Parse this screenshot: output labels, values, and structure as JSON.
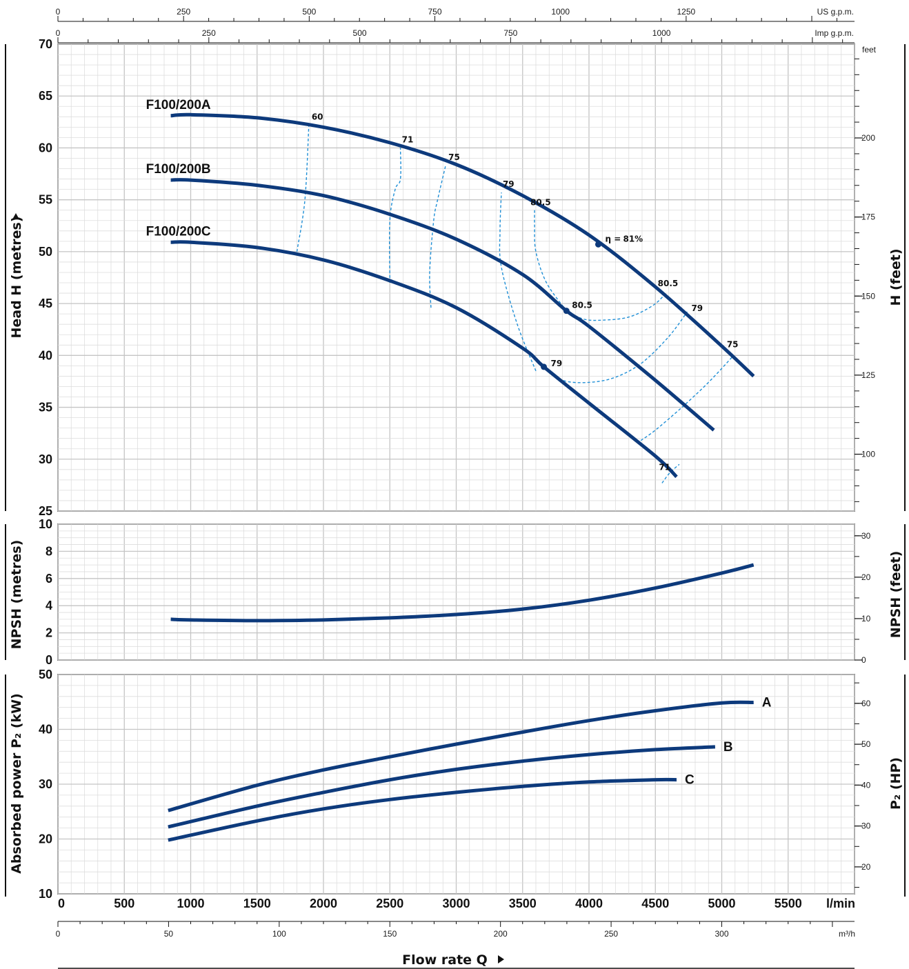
{
  "chart_data": [
    {
      "type": "line",
      "panel": "head",
      "ylabel": "Head H  (metres)",
      "ylabel_right": "H (feet)",
      "ylim": [
        25,
        70
      ],
      "yticks": [
        "25",
        "30",
        "35",
        "40",
        "45",
        "50",
        "55",
        "60",
        "65",
        "70"
      ],
      "y2unit": "feet",
      "y2ticks": [
        "100",
        "125",
        "150",
        "175",
        "200"
      ],
      "top_scales": [
        {
          "unit": "US g.p.m.",
          "ticks": [
            "0",
            "250",
            "500",
            "750",
            "1000",
            "1250"
          ]
        },
        {
          "unit": "Imp g.p.m.",
          "ticks": [
            "0",
            "250",
            "500",
            "750",
            "1000"
          ]
        }
      ],
      "series": [
        {
          "name": "F100/200A",
          "x": [
            850,
            1000,
            1500,
            2000,
            2500,
            3000,
            3500,
            4000,
            4500,
            5000,
            5240
          ],
          "y": [
            63.1,
            63.2,
            62.9,
            62.0,
            60.5,
            58.4,
            55.4,
            51.6,
            46.6,
            40.9,
            38.0
          ]
        },
        {
          "name": "F100/200B",
          "x": [
            850,
            1000,
            1500,
            2000,
            2500,
            3000,
            3500,
            3830,
            4000,
            4500,
            4940
          ],
          "y": [
            56.9,
            56.9,
            56.4,
            55.4,
            53.6,
            51.2,
            47.8,
            44.3,
            42.8,
            37.6,
            32.8
          ]
        },
        {
          "name": "F100/200C",
          "x": [
            850,
            1000,
            1500,
            2000,
            2500,
            3000,
            3500,
            3660,
            4000,
            4500,
            4660
          ],
          "y": [
            50.9,
            50.9,
            50.4,
            49.2,
            47.2,
            44.6,
            40.7,
            38.9,
            35.4,
            30.3,
            28.3
          ]
        }
      ],
      "efficiency_labels": [
        "60",
        "71",
        "75",
        "79",
        "80.5",
        "81%",
        "80.5",
        "79",
        "75",
        "80.5",
        "79",
        "71"
      ],
      "eta_symbol": "η =",
      "efficiency_points": [
        {
          "x": 1890,
          "y": 62.2
        },
        {
          "x": 2580,
          "y": 60.0
        },
        {
          "x": 2920,
          "y": 58.3
        },
        {
          "x": 3340,
          "y": 55.7
        },
        {
          "x": 3590,
          "y": 54.0
        },
        {
          "x": 4070,
          "y": 50.7
        },
        {
          "x": 4580,
          "y": 46.0
        },
        {
          "x": 4740,
          "y": 44.2
        },
        {
          "x": 5090,
          "y": 40.0
        },
        {
          "x": 3830,
          "y": 44.3
        },
        {
          "x": 3660,
          "y": 38.9
        },
        {
          "x": 4610,
          "y": 28.7
        }
      ],
      "efficiency_marker_indices": [
        5,
        9,
        10
      ],
      "iso_efficiency_lines": [
        {
          "label": "60",
          "x": [
            1800,
            1860,
            1890
          ],
          "y": [
            50.0,
            55.0,
            62.2
          ]
        },
        {
          "label": "71",
          "x": [
            2500,
            2500,
            2540,
            2580,
            2580
          ],
          "y": [
            47.0,
            53.0,
            56.0,
            57.0,
            60.0
          ]
        },
        {
          "label": "75",
          "x": [
            2810,
            2800,
            2830,
            2860,
            2920
          ],
          "y": [
            44.6,
            48.0,
            53.0,
            55.0,
            58.3
          ]
        },
        {
          "label": "79",
          "x": [
            3600,
            3460,
            3340,
            3330,
            3340
          ],
          "y": [
            38.5,
            43.0,
            48.5,
            52.0,
            55.7
          ]
        },
        {
          "label": "80.5",
          "x": [
            3830,
            3680,
            3600,
            3590,
            3590
          ],
          "y": [
            44.3,
            47.0,
            50.0,
            52.5,
            54.0
          ]
        },
        {
          "label": "80.5 loop",
          "x": [
            3830,
            3960,
            4100,
            4300,
            4480,
            4580
          ],
          "y": [
            44.3,
            43.5,
            43.4,
            43.7,
            44.8,
            46.0
          ]
        },
        {
          "label": "79 loop",
          "x": [
            3660,
            3800,
            4000,
            4200,
            4400,
            4600,
            4740
          ],
          "y": [
            38.9,
            37.6,
            37.4,
            37.9,
            39.3,
            41.8,
            44.2
          ]
        },
        {
          "label": "75 loop",
          "x": [
            4390,
            4500,
            4700,
            4900,
            5090
          ],
          "y": [
            31.8,
            32.8,
            35.0,
            37.4,
            40.0
          ]
        },
        {
          "label": "71 loop",
          "x": [
            4550,
            4610,
            4680
          ],
          "y": [
            27.7,
            28.7,
            29.5
          ]
        }
      ]
    },
    {
      "type": "line",
      "panel": "npsh",
      "ylabel": "NPSH  (metres)",
      "ylabel_right": "NPSH  (feet)",
      "ylim": [
        0,
        10
      ],
      "yticks": [
        "0",
        "2",
        "4",
        "6",
        "8",
        "10"
      ],
      "y2ticks": [
        "0",
        "10",
        "20",
        "30"
      ],
      "series": [
        {
          "name": "",
          "x": [
            850,
            1000,
            1500,
            2000,
            2500,
            3000,
            3500,
            4000,
            4500,
            5000,
            5240
          ],
          "y": [
            3.0,
            2.95,
            2.9,
            2.95,
            3.1,
            3.35,
            3.75,
            4.4,
            5.3,
            6.4,
            7.0
          ]
        }
      ]
    },
    {
      "type": "line",
      "panel": "power",
      "ylabel": "Absorbed power  P₂  (kW)",
      "ylabel_right": "P₂  (HP)",
      "ylim": [
        10,
        50
      ],
      "yticks": [
        "10",
        "20",
        "30",
        "40",
        "50"
      ],
      "y2ticks": [
        "20",
        "30",
        "40",
        "50",
        "60"
      ],
      "xlabel": "Flow rate  Q",
      "xlim": [
        0,
        6000
      ],
      "xticks": [
        "0",
        "500",
        "1000",
        "1500",
        "2000",
        "2500",
        "3000",
        "3500",
        "4000",
        "4500",
        "5000",
        "5500"
      ],
      "xunit": "l/min",
      "bottom_scale": {
        "unit": "m³/h",
        "ticks": [
          "0",
          "50",
          "100",
          "150",
          "200",
          "250",
          "300"
        ]
      },
      "series": [
        {
          "name": "A",
          "x": [
            830,
            1500,
            2000,
            2500,
            3000,
            3500,
            4000,
            4500,
            5000,
            5240
          ],
          "y": [
            25.2,
            29.8,
            32.6,
            35.0,
            37.3,
            39.5,
            41.6,
            43.4,
            44.8,
            44.9
          ]
        },
        {
          "name": "B",
          "x": [
            830,
            1500,
            2000,
            2500,
            3000,
            3500,
            4000,
            4500,
            4950
          ],
          "y": [
            22.2,
            26.0,
            28.5,
            30.8,
            32.7,
            34.2,
            35.4,
            36.3,
            36.8
          ]
        },
        {
          "name": "C",
          "x": [
            830,
            1500,
            2000,
            2500,
            3000,
            3500,
            4000,
            4500,
            4660
          ],
          "y": [
            19.8,
            23.3,
            25.5,
            27.2,
            28.5,
            29.6,
            30.4,
            30.8,
            30.8
          ]
        }
      ]
    }
  ],
  "colors": {
    "curve": "#0d3a7c",
    "dash": "#1f8fd6",
    "grid_major": "#c4c4c4",
    "grid_minor": "#dddddd",
    "frame": "#111111",
    "panel_bg": "#ffffff"
  }
}
